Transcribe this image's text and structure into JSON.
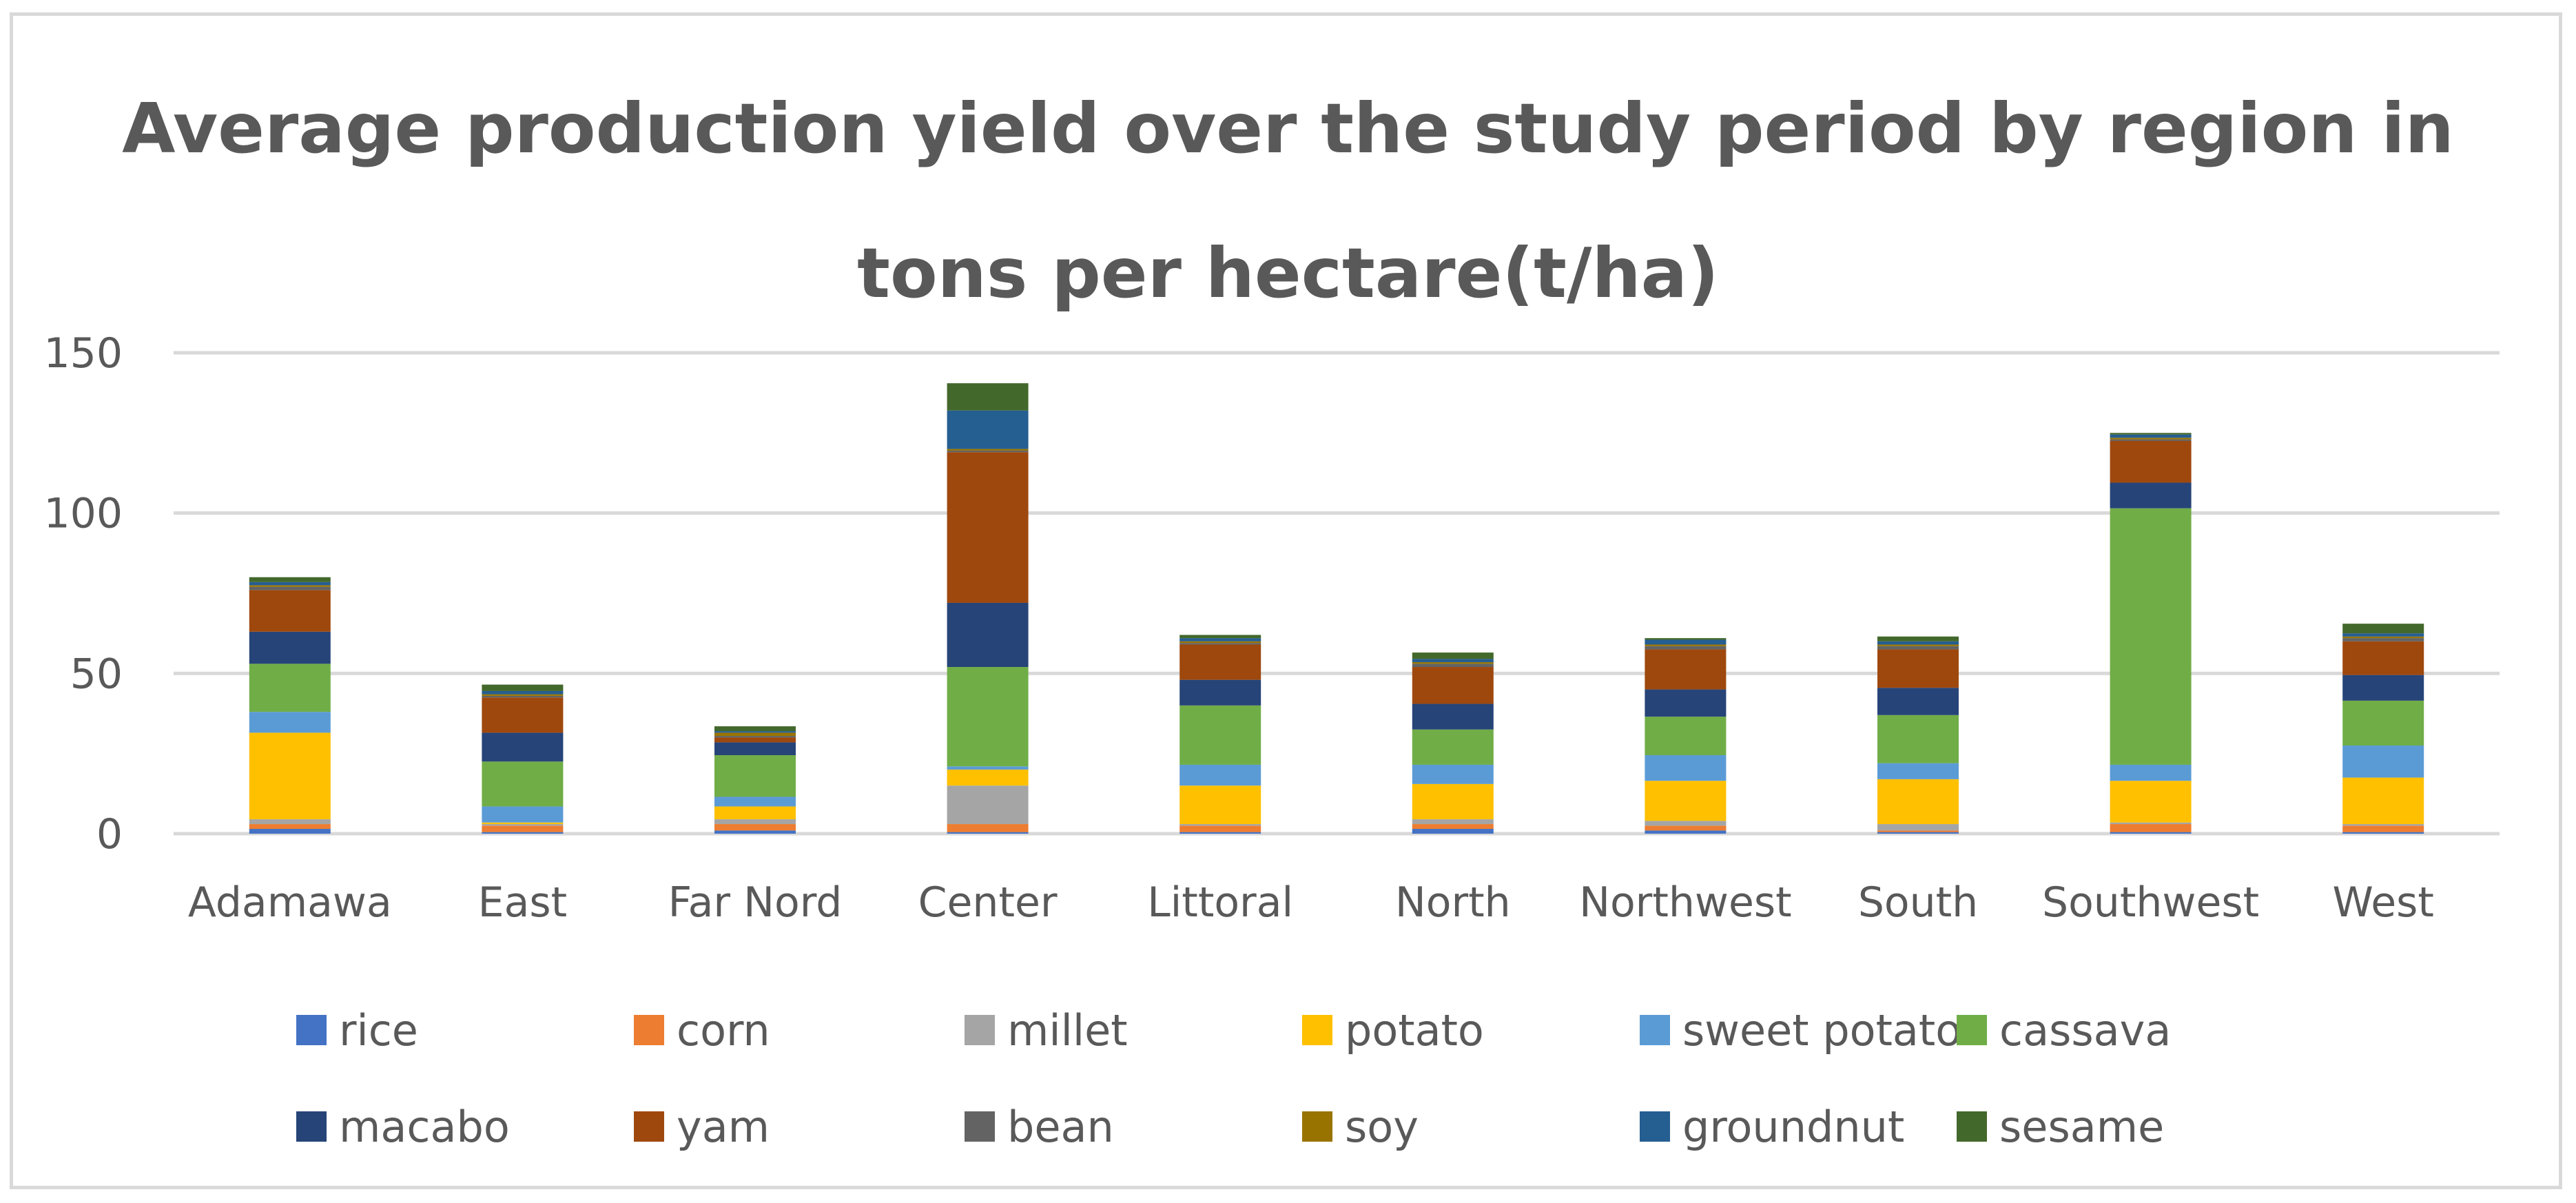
{
  "chart_data": {
    "type": "bar",
    "stacked": true,
    "title_line1": "Average production yield over the study period by region in",
    "title_line2": "tons per hectare(t/ha)",
    "xlabel": "",
    "ylabel": "",
    "ylim": [
      0,
      150
    ],
    "yticks": [
      "0",
      "50",
      "100",
      "150"
    ],
    "grid": true,
    "legend_position": "bottom",
    "categories": [
      "Adamawa",
      "East",
      "Far Nord",
      "Center",
      "Littoral",
      "North",
      "Northwest",
      "South",
      "Southwest",
      "West"
    ],
    "series": [
      {
        "name": "rice",
        "color": "#4472C4",
        "values": [
          1.5,
          0.5,
          1.0,
          0.5,
          0.5,
          1.5,
          1.0,
          0.5,
          0.5,
          0.5
        ]
      },
      {
        "name": "corn",
        "color": "#ED7D31",
        "values": [
          1.5,
          2.0,
          2.0,
          2.5,
          2.0,
          1.5,
          1.5,
          0.5,
          2.5,
          2.0
        ]
      },
      {
        "name": "millet",
        "color": "#A5A5A5",
        "values": [
          1.5,
          0.5,
          1.5,
          12.0,
          0.5,
          1.5,
          1.5,
          2.0,
          0.5,
          0.5
        ]
      },
      {
        "name": "potato",
        "color": "#FFC000",
        "values": [
          27.0,
          0.5,
          4.0,
          5.0,
          12.0,
          11.0,
          12.5,
          14.0,
          13.0,
          14.5
        ]
      },
      {
        "name": "sweet potato",
        "color": "#5B9BD5",
        "values": [
          6.5,
          5.0,
          3.0,
          1.0,
          6.5,
          6.0,
          8.0,
          5.0,
          5.0,
          10.0
        ]
      },
      {
        "name": "cassava",
        "color": "#70AD47",
        "values": [
          15.0,
          14.0,
          13.0,
          31.0,
          18.5,
          11.0,
          12.0,
          15.0,
          80.0,
          14.0
        ]
      },
      {
        "name": "macabo",
        "color": "#264478",
        "values": [
          10.0,
          9.0,
          4.0,
          20.0,
          8.0,
          8.0,
          8.5,
          8.5,
          8.0,
          8.0
        ]
      },
      {
        "name": "yam",
        "color": "#9E480E",
        "values": [
          13.0,
          11.0,
          1.5,
          47.0,
          11.0,
          11.5,
          12.5,
          12.0,
          13.0,
          10.5
        ]
      },
      {
        "name": "bean",
        "color": "#636363",
        "values": [
          1.0,
          0.5,
          0.5,
          0.5,
          0.5,
          1.0,
          1.0,
          1.0,
          0.5,
          1.0
        ]
      },
      {
        "name": "soy",
        "color": "#997300",
        "values": [
          0.5,
          0.5,
          1.0,
          0.5,
          0.5,
          0.5,
          0.5,
          0.5,
          0.5,
          0.5
        ]
      },
      {
        "name": "groundnut",
        "color": "#255E91",
        "values": [
          1.0,
          1.0,
          0.5,
          12.0,
          1.0,
          1.0,
          1.5,
          1.0,
          1.0,
          1.0
        ]
      },
      {
        "name": "sesame",
        "color": "#43682B",
        "values": [
          1.5,
          2.0,
          1.5,
          8.5,
          1.0,
          2.0,
          0.5,
          1.5,
          0.5,
          3.0
        ]
      }
    ]
  }
}
